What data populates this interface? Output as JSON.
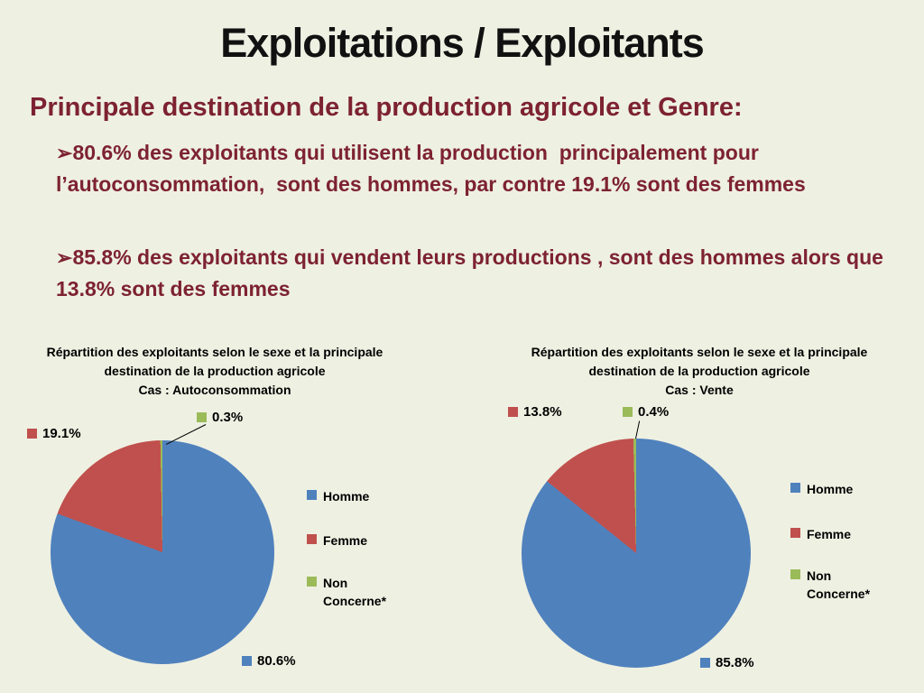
{
  "slide": {
    "title": "Exploitations / Exploitants",
    "subtitle": "Principale destination de la production agricole et Genre:",
    "bullets": [
      {
        "marker": "➢",
        "text": "80.6% des exploitants qui utilisent la production  principalement pour l’autoconsommation,  sont des hommes, par contre 19.1% sont des femmes"
      },
      {
        "marker": "➢",
        "text": "85.8% des exploitants qui vendent leurs productions , sont des hommes alors que 13.8% sont des femmes"
      }
    ],
    "colors": {
      "background": "#eef0e2",
      "title": "#111111",
      "accent_text": "#7d2230"
    }
  },
  "chart_data": [
    {
      "type": "pie",
      "title": "Répartition des exploitants selon le sexe et la principale destination de la production agricole",
      "case_line": "Cas : Autoconsommation",
      "series": [
        {
          "name": "Homme",
          "value": 80.6,
          "label": "80.6%",
          "color": "#4F81BD"
        },
        {
          "name": "Femme",
          "value": 19.1,
          "label": "19.1%",
          "color": "#C0504D"
        },
        {
          "name": "Non Concerne*",
          "value": 0.3,
          "label": "0.3%",
          "color": "#9BBB59"
        }
      ],
      "legend": [
        {
          "label": "Homme",
          "color": "#4F81BD"
        },
        {
          "label": "Femme",
          "color": "#C0504D"
        },
        {
          "label": "Non Concerne*",
          "color": "#9BBB59"
        }
      ],
      "legend_position": "right",
      "start_angle": 0
    },
    {
      "type": "pie",
      "title": "Répartition des exploitants selon le sexe et la principale destination de la production agricole",
      "case_line": "Cas : Vente",
      "series": [
        {
          "name": "Homme",
          "value": 85.8,
          "label": "85.8%",
          "color": "#4F81BD"
        },
        {
          "name": "Femme",
          "value": 13.8,
          "label": "13.8%",
          "color": "#C0504D"
        },
        {
          "name": "Non Concerne*",
          "value": 0.4,
          "label": "0.4%",
          "color": "#9BBB59"
        }
      ],
      "legend": [
        {
          "label": "Homme",
          "color": "#4F81BD"
        },
        {
          "label": "Femme",
          "color": "#C0504D"
        },
        {
          "label": "Non Concerne*",
          "color": "#9BBB59"
        }
      ],
      "legend_position": "right",
      "start_angle": 0
    }
  ]
}
